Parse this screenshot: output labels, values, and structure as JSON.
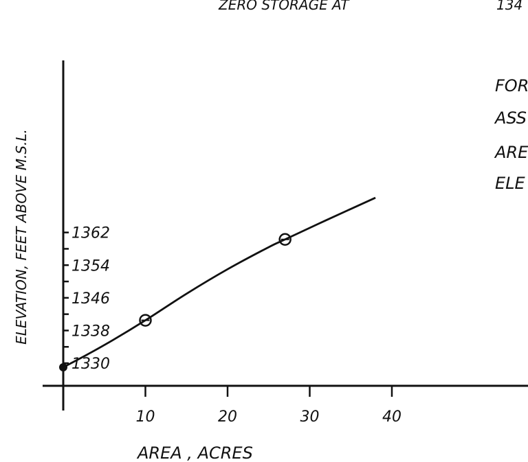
{
  "chart_data": {
    "type": "line",
    "title": "ZERO STORAGE AT",
    "title_right": "134",
    "ylabel": "ELEVATION, FEET ABOVE M.S.L.",
    "xlabel": "AREA , ACRES",
    "x_tick_labels": [
      "10",
      "20",
      "30",
      "40"
    ],
    "y_tick_labels": [
      "1330",
      "1338",
      "1346",
      "1354",
      "1362"
    ],
    "xlim": [
      0,
      40
    ],
    "ylim": [
      1327,
      1366
    ],
    "grid": false,
    "series": [
      {
        "x": [
          0,
          3,
          6,
          10,
          15,
          20,
          25,
          27,
          32,
          38
        ],
        "y": [
          1329,
          1332.2,
          1335.6,
          1340.5,
          1347,
          1353,
          1358.4,
          1360.3,
          1365,
          1370.5
        ]
      }
    ],
    "circled_points": [
      {
        "x": 10,
        "y": 1340.5
      },
      {
        "x": 27,
        "y": 1360.3
      }
    ],
    "start_point": {
      "x": 0,
      "y": 1329
    },
    "side_note": [
      "FOR",
      "ASS",
      "ARE",
      "ELE"
    ],
    "colors": {
      "ink": "#111111",
      "background": "#ffffff"
    }
  }
}
